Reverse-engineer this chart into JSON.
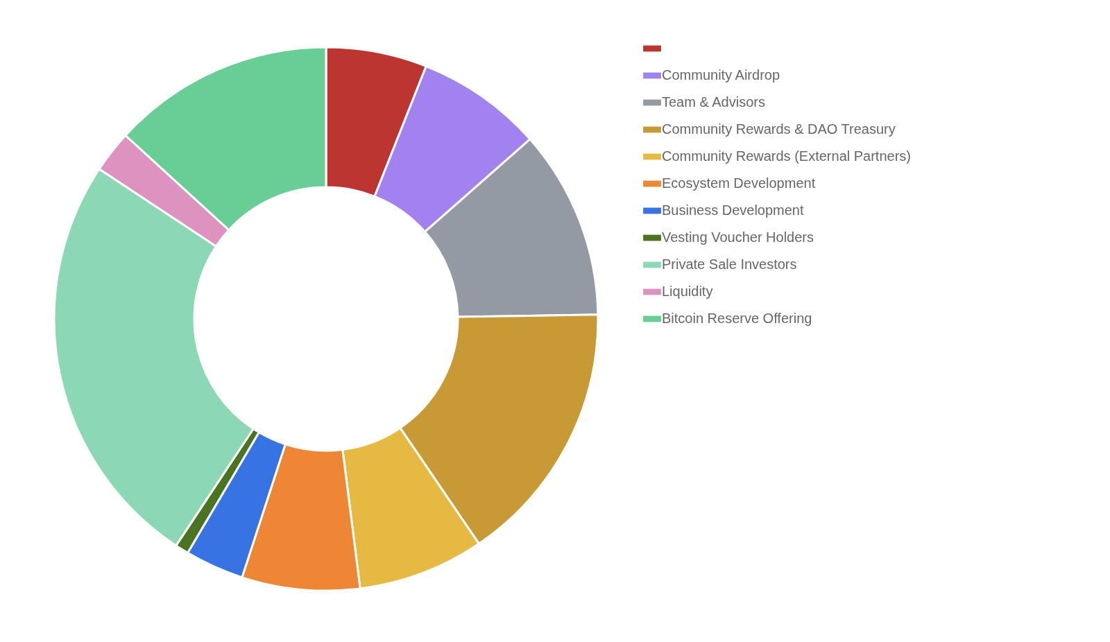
{
  "chart_data": {
    "type": "donut",
    "legend": "right",
    "categories": [
      null,
      "Community Airdrop",
      "Team & Advisors",
      "Community Rewards & DAO Treasury",
      "Community Rewards (External Partners)",
      "Ecosystem Development",
      "Business Development",
      "Vesting Voucher Holders",
      "Private Sale Investors",
      "Liquidity",
      "Bitcoin Reserve Offering"
    ],
    "values": [
      6,
      7.5,
      11.25,
      15.75,
      7.5,
      7,
      3.5,
      0.8,
      25,
      2.5,
      13.2
    ],
    "colors": [
      "#bd3531",
      "#a182ef",
      "#949aa3",
      "#c89a35",
      "#e6ba42",
      "#ee8735",
      "#3873e3",
      "#4b7422",
      "#8dd8b4",
      "#dd92bf",
      "#68ce96"
    ]
  }
}
